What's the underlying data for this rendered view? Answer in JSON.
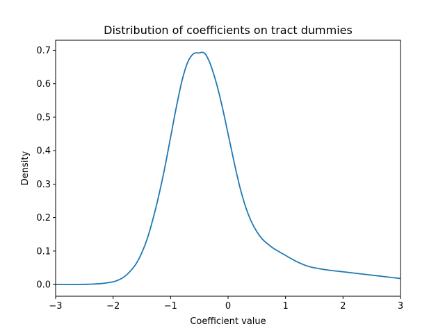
{
  "chart_data": {
    "type": "line",
    "title": "Distribution of coefficients on tract dummies",
    "xlabel": "Coefficient value",
    "ylabel": "Density",
    "xlim": [
      -3,
      3
    ],
    "ylim": [
      -0.035,
      0.73
    ],
    "xticks": [
      -3,
      -2,
      -1,
      0,
      1,
      2,
      3
    ],
    "xtick_labels": [
      "−3",
      "−2",
      "−1",
      "0",
      "1",
      "2",
      "3"
    ],
    "yticks": [
      0.0,
      0.1,
      0.2,
      0.3,
      0.4,
      0.5,
      0.6,
      0.7
    ],
    "ytick_labels": [
      "0.0",
      "0.1",
      "0.2",
      "0.3",
      "0.4",
      "0.5",
      "0.6",
      "0.7"
    ],
    "grid": false,
    "line_color": "#1f77b4",
    "series": [
      {
        "x": [
          -3.0,
          -2.8,
          -2.6,
          -2.4,
          -2.2,
          -2.0,
          -1.9,
          -1.8,
          -1.7,
          -1.6,
          -1.5,
          -1.4,
          -1.3,
          -1.2,
          -1.1,
          -1.0,
          -0.9,
          -0.8,
          -0.7,
          -0.6,
          -0.5,
          -0.45,
          -0.4,
          -0.35,
          -0.3,
          -0.2,
          -0.1,
          0.0,
          0.1,
          0.2,
          0.3,
          0.4,
          0.5,
          0.6,
          0.7,
          0.8,
          1.0,
          1.2,
          1.4,
          1.6,
          1.8,
          2.0,
          2.2,
          2.4,
          2.6,
          2.8,
          3.0
        ],
        "values": [
          0.0,
          0.0,
          0.0,
          0.001,
          0.003,
          0.008,
          0.014,
          0.024,
          0.04,
          0.062,
          0.095,
          0.14,
          0.2,
          0.27,
          0.35,
          0.44,
          0.53,
          0.61,
          0.665,
          0.69,
          0.692,
          0.694,
          0.69,
          0.675,
          0.655,
          0.6,
          0.53,
          0.45,
          0.37,
          0.295,
          0.235,
          0.19,
          0.158,
          0.135,
          0.12,
          0.107,
          0.087,
          0.068,
          0.054,
          0.047,
          0.042,
          0.038,
          0.034,
          0.03,
          0.026,
          0.022,
          0.018
        ]
      }
    ]
  }
}
